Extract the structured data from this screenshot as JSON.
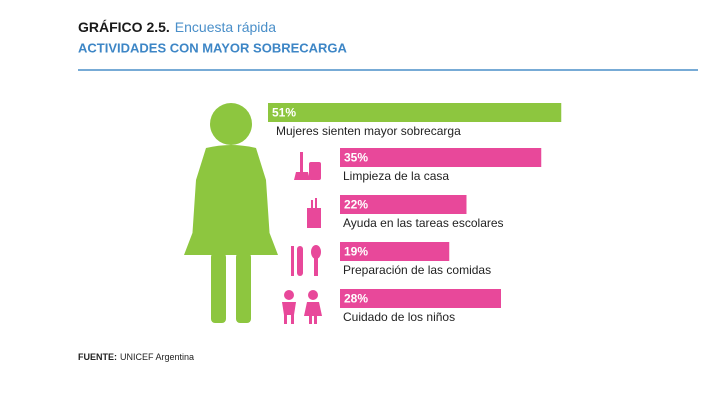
{
  "title": "GRÁFICO 2.5.",
  "title_note": "Encuesta rápida",
  "subtitle": "ACTIVIDADES CON MAYOR SOBRECARGA",
  "source_label": "FUENTE:",
  "source": "UNICEF Argentina",
  "chart_data": {
    "type": "bar",
    "orientation": "horizontal",
    "categories": [
      "Mujeres sienten mayor sobrecarga",
      "Limpieza de la casa",
      "Ayuda en las tareas escolares",
      "Preparación de las comidas",
      "Cuidado de los niños"
    ],
    "values": [
      51,
      35,
      22,
      19,
      28
    ],
    "value_labels": [
      "51%",
      "35%",
      "22%",
      "19%",
      "28%"
    ],
    "colors": [
      "#8dc63f",
      "#e8489a",
      "#e8489a",
      "#e8489a",
      "#e8489a"
    ]
  }
}
